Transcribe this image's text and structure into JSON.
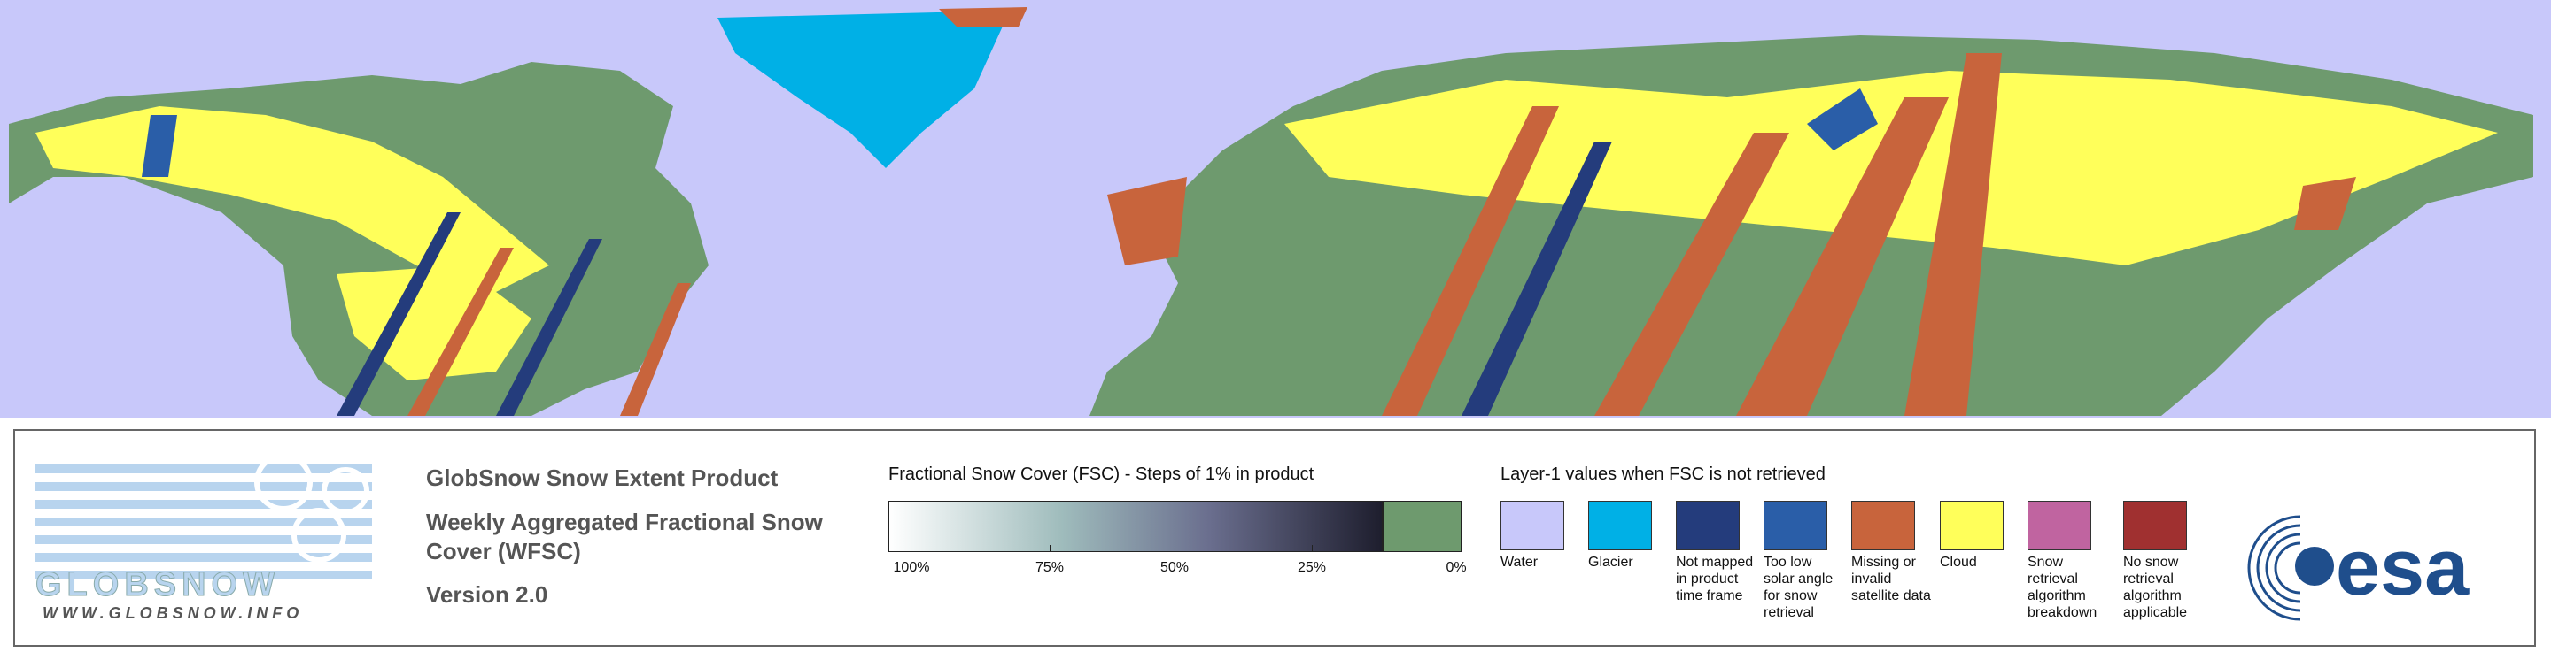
{
  "logo": {
    "name": "GLOBSNOW",
    "url": "WWW.GLOBSNOW.INFO"
  },
  "product": {
    "title": "GlobSnow Snow Extent Product",
    "subtitle": "Weekly Aggregated Fractional Snow Cover (WFSC)",
    "version": "Version 2.0"
  },
  "fsc_scale": {
    "title": "Fractional Snow Cover (FSC) - Steps of 1% in product",
    "ticks": [
      "100%",
      "75%",
      "50%",
      "25%",
      "0%"
    ]
  },
  "layer1": {
    "title": "Layer-1 values when FSC is not retrieved",
    "items": [
      {
        "label": "Water",
        "color": "#c8c8fa"
      },
      {
        "label": "Glacier",
        "color": "#00b0e6"
      },
      {
        "label": "Not mapped in product time frame",
        "color": "#243c7c"
      },
      {
        "label": "Too low solar angle for snow retrieval",
        "color": "#2a5ea8"
      },
      {
        "label": "Missing or invalid satellite data",
        "color": "#c8643c"
      },
      {
        "label": "Cloud",
        "color": "#ffff5a"
      },
      {
        "label": "Snow retrieval algorithm breakdown",
        "color": "#c064a0"
      },
      {
        "label": "No snow retrieval algorithm applicable",
        "color": "#a03030"
      }
    ]
  },
  "agency": "esa"
}
